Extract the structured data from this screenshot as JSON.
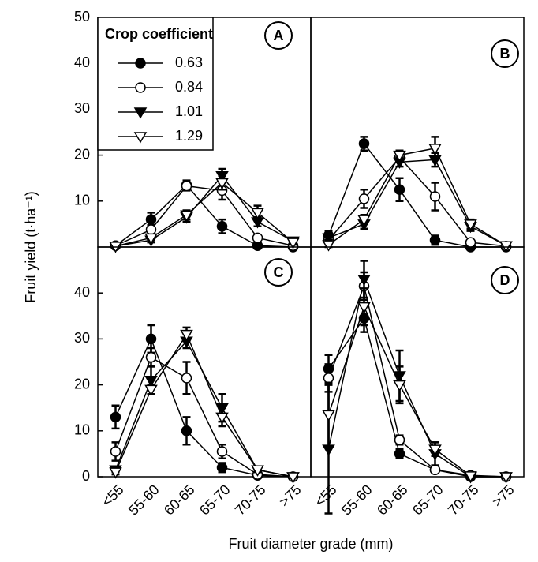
{
  "axis_labels": {
    "y": "Fruit yield (t·ha⁻¹)",
    "x": "Fruit diameter grade (mm)"
  },
  "chart_data": [
    {
      "type": "line",
      "panel": "A",
      "legend_title": "Crop coefficient",
      "categories": [
        null,
        null,
        null,
        null,
        null,
        null
      ],
      "ylim": [
        0,
        50
      ],
      "yticks": [
        10,
        20,
        30,
        40,
        50
      ],
      "series": [
        {
          "name": "0.63",
          "color": "#000000",
          "marker": "circle",
          "filled": true,
          "values": [
            0.3,
            6,
            13.5,
            4.5,
            0.3,
            0
          ],
          "errors": [
            0.3,
            1.5,
            1,
            1.5,
            0.3,
            0.3
          ]
        },
        {
          "name": "0.84",
          "color": "#000000",
          "marker": "circle",
          "filled": false,
          "values": [
            0.3,
            3.8,
            13.3,
            12.3,
            2,
            0.3
          ],
          "errors": [
            0.3,
            1,
            1,
            2,
            0.5,
            0.3
          ]
        },
        {
          "name": "1.01",
          "color": "#000000",
          "marker": "triangle-down",
          "filled": true,
          "values": [
            0.2,
            1.5,
            6.5,
            15.5,
            5.5,
            1.3
          ],
          "errors": [
            0.3,
            0.5,
            1,
            1.5,
            1,
            0.5
          ]
        },
        {
          "name": "1.29",
          "color": "#000000",
          "marker": "triangle-down",
          "filled": false,
          "values": [
            0.2,
            2,
            7,
            14,
            7.5,
            1
          ],
          "errors": [
            0.3,
            0.5,
            1,
            1.5,
            1.5,
            0.5
          ]
        }
      ]
    },
    {
      "type": "line",
      "panel": "B",
      "categories": [
        null,
        null,
        null,
        null,
        null,
        null
      ],
      "ylim": [
        0,
        50
      ],
      "series": [
        {
          "color": "#000000",
          "marker": "circle",
          "filled": true,
          "values": [
            2.5,
            22.5,
            12.5,
            1.5,
            0,
            0
          ],
          "errors": [
            1,
            1.5,
            2.5,
            1,
            0.2,
            0.2
          ]
        },
        {
          "color": "#000000",
          "marker": "circle",
          "filled": false,
          "values": [
            1.5,
            10.5,
            19.5,
            11,
            1,
            0.2
          ],
          "errors": [
            0.5,
            2,
            1,
            3,
            0.5,
            0.2
          ]
        },
        {
          "color": "#000000",
          "marker": "triangle-down",
          "filled": true,
          "values": [
            2,
            5,
            18.5,
            19,
            4.5,
            0.3
          ],
          "errors": [
            0.5,
            1,
            1,
            1.5,
            1,
            0.2
          ]
        },
        {
          "color": "#000000",
          "marker": "triangle-down",
          "filled": false,
          "values": [
            0.5,
            6,
            20,
            21.5,
            5,
            0.3
          ],
          "errors": [
            0.5,
            1,
            1,
            2.5,
            1,
            0.2
          ]
        }
      ]
    },
    {
      "type": "line",
      "panel": "C",
      "categories": [
        "<55",
        "55-60",
        "60-65",
        "65-70",
        "70-75",
        ">75"
      ],
      "ylim": [
        0,
        50
      ],
      "yticks": [
        0,
        10,
        20,
        30,
        40
      ],
      "series": [
        {
          "color": "#000000",
          "marker": "circle",
          "filled": true,
          "values": [
            13,
            30,
            10,
            2,
            0.3,
            0
          ],
          "errors": [
            2.5,
            3,
            3,
            1,
            0.3,
            0.2
          ]
        },
        {
          "color": "#000000",
          "marker": "circle",
          "filled": false,
          "values": [
            5.5,
            26,
            21.5,
            5.5,
            0.5,
            0
          ],
          "errors": [
            2,
            2,
            3.5,
            1.5,
            0.5,
            0.2
          ]
        },
        {
          "color": "#000000",
          "marker": "triangle-down",
          "filled": true,
          "values": [
            1.5,
            21,
            29.5,
            15,
            1.5,
            0
          ],
          "errors": [
            0.5,
            3,
            1.5,
            3,
            0.5,
            0.2
          ]
        },
        {
          "color": "#000000",
          "marker": "triangle-down",
          "filled": false,
          "values": [
            1,
            19,
            31,
            13,
            1.5,
            0
          ],
          "errors": [
            0.5,
            1,
            1.5,
            2,
            0.5,
            0.2
          ]
        }
      ]
    },
    {
      "type": "line",
      "panel": "D",
      "categories": [
        "<55",
        "55-60",
        "60-65",
        "65-70",
        "70-75",
        ">75"
      ],
      "ylim": [
        0,
        50
      ],
      "series": [
        {
          "color": "#000000",
          "marker": "circle",
          "filled": true,
          "values": [
            23.5,
            34.5,
            5,
            1.5,
            0,
            0
          ],
          "errors": [
            3,
            3,
            1,
            0.5,
            0.2,
            0.2
          ]
        },
        {
          "color": "#000000",
          "marker": "circle",
          "filled": false,
          "values": [
            21.5,
            41.5,
            8,
            1.5,
            0.3,
            0
          ],
          "errors": [
            3,
            3,
            1,
            0.5,
            0.2,
            0.2
          ]
        },
        {
          "color": "#000000",
          "marker": "triangle-down",
          "filled": true,
          "values": [
            6,
            43,
            22,
            5,
            0,
            0
          ],
          "errors": [
            14,
            4,
            5.5,
            2.5,
            0.2,
            0.2
          ]
        },
        {
          "color": "#000000",
          "marker": "triangle-down",
          "filled": false,
          "values": [
            13.5,
            37,
            20,
            6,
            0.2,
            0
          ],
          "errors": [
            7,
            4,
            4,
            1.5,
            0.2,
            0.2
          ]
        }
      ]
    }
  ]
}
